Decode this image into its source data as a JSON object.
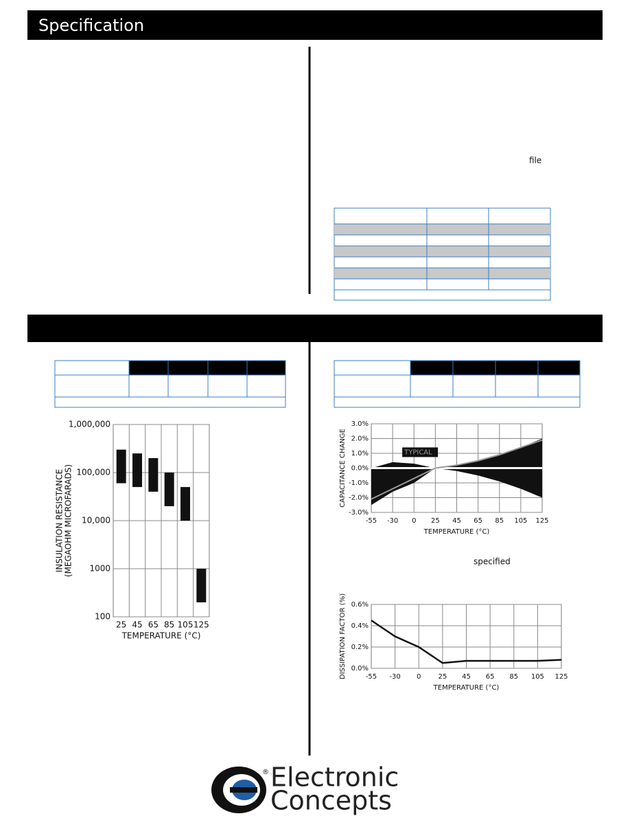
{
  "header": {
    "title": "Specification"
  },
  "notes": [
    "file",
    "specified"
  ],
  "charts": [
    {
      "type": "range-bar",
      "ylabel": [
        "INSULATION RESISTANCE",
        "(MEGAOHM MICROFARADS)"
      ],
      "xlabel": "TEMPERATURE (°C)",
      "categories": [
        "25",
        "45",
        "65",
        "85",
        "105",
        "125"
      ],
      "low": [
        60000,
        50000,
        40000,
        20000,
        10000,
        200
      ],
      "high": [
        300000,
        250000,
        200000,
        100000,
        50000,
        1000
      ],
      "color": "#111111",
      "log": true,
      "ylim": [
        100,
        1000000
      ],
      "yticks": [
        {
          "value": 1000000,
          "label": "1,000,000"
        },
        {
          "value": 100000,
          "label": "100,000"
        },
        {
          "value": 10000,
          "label": "10,000"
        },
        1000,
        100
      ],
      "grid": true
    },
    {
      "type": "band",
      "ylabel": [
        "CAPACITANCE CHANGE"
      ],
      "xlabel": "TEMPERATURE (°C)",
      "annotation": "TYPICAL",
      "categories": [
        "-55",
        "-30",
        "0",
        "25",
        "45",
        "65",
        "85",
        "105",
        "125"
      ],
      "upper": [
        0.0,
        0.4,
        0.3,
        0.0,
        0.2,
        0.5,
        0.9,
        1.4,
        2.0
      ],
      "lower": [
        -2.5,
        -1.6,
        -1.0,
        0.0,
        -0.2,
        -0.5,
        -0.9,
        -1.4,
        -2.0
      ],
      "typical": [
        -2.1,
        -1.4,
        -0.7,
        0.0,
        0.2,
        0.5,
        0.9,
        1.4,
        1.9
      ],
      "color": "#111111",
      "line_color": "#999999",
      "ylim": [
        -3,
        3
      ],
      "yticks": [
        {
          "value": 3,
          "label": "3.0%"
        },
        {
          "value": 2,
          "label": "2.0%"
        },
        {
          "value": 1,
          "label": "1.0%"
        },
        {
          "value": 0,
          "label": "0.0%"
        },
        {
          "value": -1,
          "label": "-1.0%"
        },
        {
          "value": -2,
          "label": "-2.0%"
        },
        {
          "value": -3,
          "label": "-3.0%"
        }
      ],
      "grid": true
    },
    {
      "type": "line",
      "ylabel": [
        "DISSIPATION FACTOR (%)"
      ],
      "xlabel": "TEMPERATURE (°C)",
      "categories": [
        "-55",
        "-30",
        "0",
        "25",
        "45",
        "65",
        "85",
        "105",
        "125"
      ],
      "values": [
        0.45,
        0.3,
        0.2,
        0.05,
        0.07,
        0.07,
        0.07,
        0.07,
        0.08
      ],
      "color": "#111111",
      "ylim": [
        0,
        0.6
      ],
      "yticks": [
        {
          "value": 0.6,
          "label": "0.6%"
        },
        {
          "value": 0.4,
          "label": "0.4%"
        },
        {
          "value": 0.2,
          "label": "0.2%"
        },
        {
          "value": 0,
          "label": "0.0%"
        }
      ],
      "grid": true
    }
  ],
  "logo": {
    "mark": "®",
    "line1": "Electronic",
    "line2": "Concepts"
  }
}
